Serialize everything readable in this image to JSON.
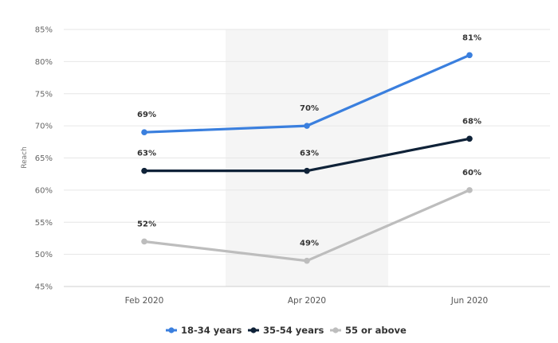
{
  "chart_data": {
    "type": "line",
    "title": "",
    "xlabel": "",
    "ylabel": "Reach",
    "categories": [
      "Feb 2020",
      "Apr 2020",
      "Jun 2020"
    ],
    "ylim": [
      45,
      85
    ],
    "yticks": [
      45,
      50,
      55,
      60,
      65,
      70,
      75,
      80,
      85
    ],
    "ytick_labels": [
      "45%",
      "50%",
      "55%",
      "60%",
      "65%",
      "70%",
      "75%",
      "80%",
      "85%"
    ],
    "grid": true,
    "highlight_band": [
      "Feb 2020",
      "Apr 2020"
    ],
    "legend_position": "bottom-center",
    "series": [
      {
        "name": "18-34 years",
        "color": "#3a7fde",
        "values": [
          69,
          70,
          81
        ],
        "labels": [
          "69%",
          "70%",
          "81%"
        ]
      },
      {
        "name": "35-54 years",
        "color": "#0f2238",
        "values": [
          63,
          63,
          68
        ],
        "labels": [
          "63%",
          "63%",
          "68%"
        ]
      },
      {
        "name": "55 or above",
        "color": "#bdbdbd",
        "values": [
          52,
          49,
          60
        ],
        "labels": [
          "52%",
          "49%",
          "60%"
        ]
      }
    ]
  }
}
